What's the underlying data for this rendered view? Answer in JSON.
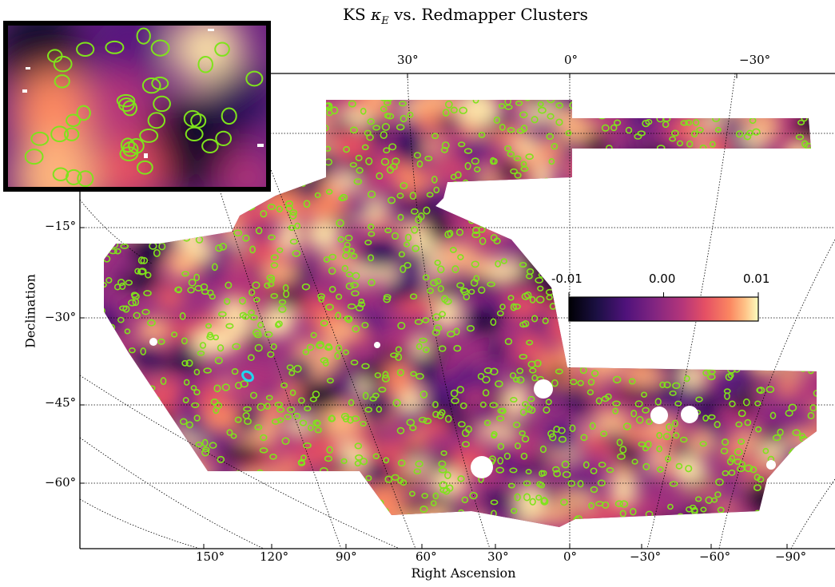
{
  "chart_data": {
    "type": "heatmap",
    "title": "KS κ_E vs. Redmapper Clusters",
    "title_prefix": "KS",
    "title_kappa": "κ",
    "title_sub": "E",
    "title_suffix": "vs. Redmapper Clusters",
    "xlabel": "Right Ascension",
    "ylabel": "Declination",
    "x_ticks_bottom": [
      "150°",
      "120°",
      "90°",
      "60°",
      "30°",
      "0°",
      "−30°",
      "−60°",
      "−90°"
    ],
    "x_ticks_top": [
      "30°",
      "0°",
      "−30°"
    ],
    "y_ticks": [
      "−15°",
      "−30°",
      "−45°",
      "−60°"
    ],
    "colorbar": {
      "min": -0.01,
      "max": 0.01,
      "tick_labels": [
        "-0.01",
        "0.00",
        "0.01"
      ],
      "colormap": "magma"
    },
    "marker_color": "#7fe31c",
    "highlight_color": "#21d6f0",
    "overlay": "Redmapper cluster positions (green circles)",
    "has_zoom_inset": true
  }
}
